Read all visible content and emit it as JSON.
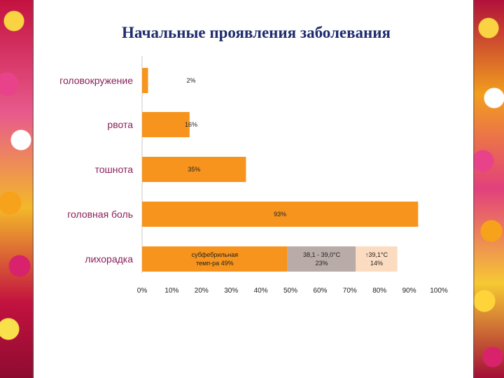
{
  "slide": {
    "title": "Начальные проявления заболевания"
  },
  "chart_data": {
    "type": "bar",
    "orientation": "horizontal",
    "categories": [
      "головокружение",
      "рвота",
      "тошнота",
      "головная боль",
      "лихорадка"
    ],
    "values": [
      2,
      16,
      35,
      93,
      null
    ],
    "value_labels": [
      "2%",
      "16%",
      "35%",
      "93%",
      null
    ],
    "stacked_segments": {
      "category": "лихорадка",
      "segments": [
        {
          "label_lines": [
            "субфебрильная",
            "темп-ра   49%"
          ],
          "value": 49,
          "color": "#f7941d"
        },
        {
          "label_lines": [
            "38,1 - 39,0°С",
            "23%"
          ],
          "value": 23,
          "color": "#b9aba7"
        },
        {
          "label_lines": [
            "↑39,1°С",
            "14%"
          ],
          "value": 14,
          "color": "#fcdcc0"
        }
      ]
    },
    "bar_color": "#f7941d",
    "x_ticks": [
      "0%",
      "10%",
      "20%",
      "30%",
      "40%",
      "50%",
      "60%",
      "70%",
      "80%",
      "90%",
      "100%"
    ],
    "xlim": [
      0,
      100
    ],
    "grid": false,
    "legend": "none"
  }
}
